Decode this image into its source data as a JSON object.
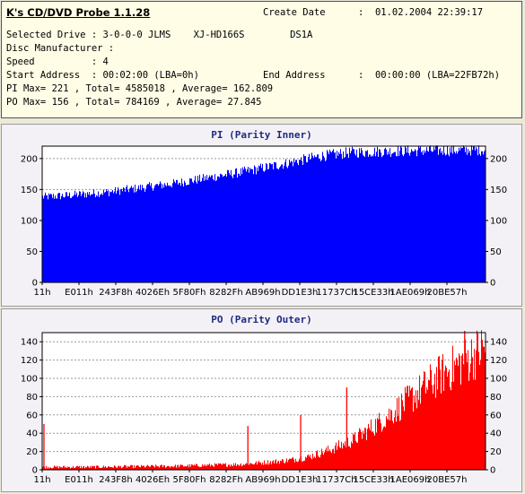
{
  "app": {
    "title": "K's CD/DVD Probe 1.1.28"
  },
  "info": {
    "create_date_label": "Create Date",
    "create_date_value": ":  01.02.2004 22:39:17",
    "selected_drive": "Selected Drive : 3-0-0-0 JLMS    XJ-HD166S        DS1A",
    "disc_manufacturer": "Disc Manufacturer :",
    "speed": "Speed          : 4",
    "start_address": "Start Address  : 00:02:00 (LBA=0h)",
    "end_address_label": "End Address",
    "end_address_value": ":  00:00:00 (LBA=22FB72h)",
    "pi_stats": "PI Max= 221 , Total= 4585018 , Average= 162.809",
    "po_stats": "PO Max= 156 , Total= 784169 , Average= 27.845"
  },
  "chart_data": [
    {
      "type": "bar",
      "title": "PI (Parity Inner)",
      "color": "#0000ff",
      "ylim": [
        0,
        220
      ],
      "yticks": [
        0,
        50,
        100,
        150,
        200
      ],
      "grid": true,
      "xticks": [
        "11h",
        "E011h",
        "243F8h",
        "4026Eh",
        "5F80Fh",
        "8282Fh",
        "AB969h",
        "DD1E3h",
        "11737Ch",
        "15CE33h",
        "1AE069h",
        "20BE57h"
      ],
      "profile_x": [
        0,
        0.05,
        0.15,
        0.3,
        0.45,
        0.55,
        0.63,
        0.7,
        0.8,
        0.9,
        1.0
      ],
      "profile_y": [
        138,
        140,
        146,
        160,
        178,
        192,
        204,
        210,
        212,
        213,
        214
      ],
      "max": 221
    },
    {
      "type": "bar",
      "title": "PO (Parity Outer)",
      "color": "#ff0000",
      "ylim": [
        0,
        150
      ],
      "yticks": [
        0,
        20,
        40,
        60,
        80,
        100,
        120,
        140
      ],
      "grid": true,
      "xticks": [
        "11h",
        "E011h",
        "243F8h",
        "4026Eh",
        "5F80Fh",
        "8282Fh",
        "AB969h",
        "DD1E3h",
        "11737Ch",
        "15CE33h",
        "1AE069h",
        "20BE57h"
      ],
      "profile_x": [
        0,
        0.1,
        0.3,
        0.45,
        0.55,
        0.6,
        0.65,
        0.7,
        0.75,
        0.8,
        0.85,
        0.9,
        0.95,
        1.0
      ],
      "profile_y": [
        3,
        3,
        4,
        6,
        10,
        14,
        22,
        32,
        48,
        66,
        85,
        104,
        118,
        134
      ],
      "spikes": [
        {
          "t": 0.004,
          "v": 50
        },
        {
          "t": 0.464,
          "v": 48
        },
        {
          "t": 0.583,
          "v": 60
        },
        {
          "t": 0.687,
          "v": 90
        },
        {
          "t": 0.953,
          "v": 156
        }
      ],
      "max": 156
    }
  ]
}
